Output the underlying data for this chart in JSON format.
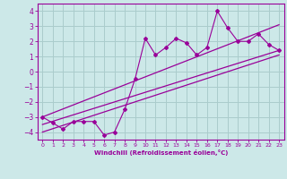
{
  "xlabel": "Windchill (Refroidissement éolien,°C)",
  "bg_color": "#cce8e8",
  "line_color": "#990099",
  "grid_color": "#aacccc",
  "xlim": [
    -0.5,
    23.5
  ],
  "ylim": [
    -4.5,
    4.5
  ],
  "xticks": [
    0,
    1,
    2,
    3,
    4,
    5,
    6,
    7,
    8,
    9,
    10,
    11,
    12,
    13,
    14,
    15,
    16,
    17,
    18,
    19,
    20,
    21,
    22,
    23
  ],
  "yticks": [
    -4,
    -3,
    -2,
    -1,
    0,
    1,
    2,
    3,
    4
  ],
  "scatter_x": [
    0,
    1,
    2,
    3,
    4,
    5,
    6,
    7,
    8,
    9,
    10,
    11,
    12,
    13,
    14,
    15,
    16,
    17,
    18,
    19,
    20,
    21,
    22,
    23
  ],
  "scatter_y": [
    -3.0,
    -3.4,
    -3.8,
    -3.3,
    -3.3,
    -3.3,
    -4.2,
    -4.0,
    -2.5,
    -0.5,
    2.2,
    1.1,
    1.6,
    2.2,
    1.9,
    1.1,
    1.6,
    4.0,
    2.9,
    2.0,
    2.0,
    2.5,
    1.8,
    1.4
  ],
  "line1_x": [
    0,
    23
  ],
  "line1_y": [
    -3.5,
    1.4
  ],
  "line2_x": [
    0,
    23
  ],
  "line2_y": [
    -3.0,
    3.1
  ],
  "line3_x": [
    0,
    23
  ],
  "line3_y": [
    -4.0,
    1.1
  ]
}
